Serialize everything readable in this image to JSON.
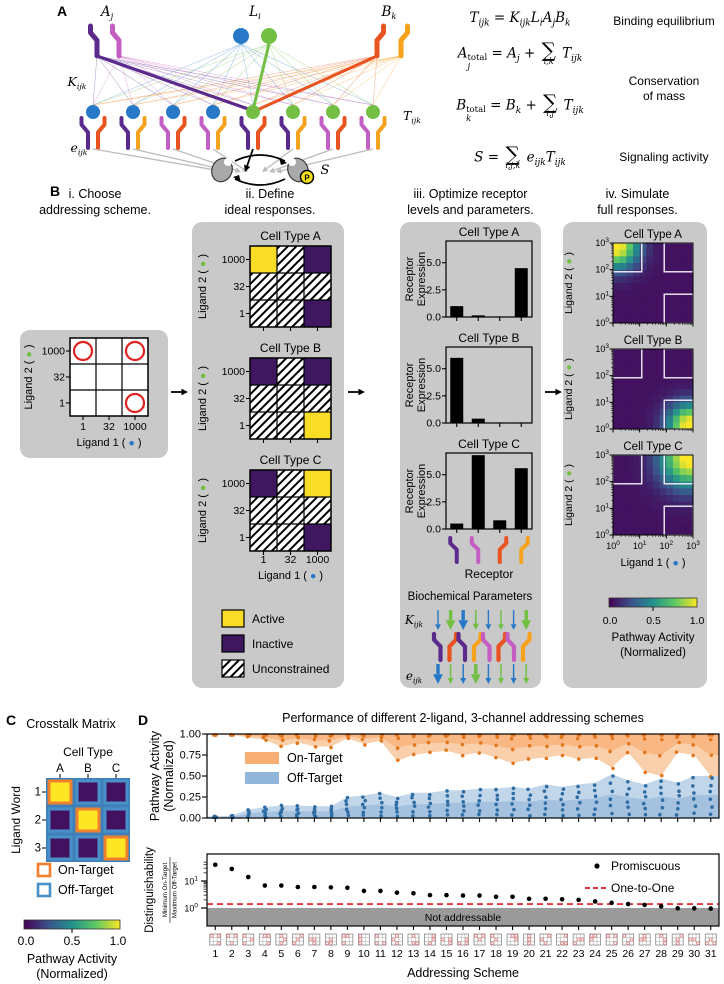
{
  "panelA": {
    "label": "A",
    "node_labels": {
      "a": "A_{j}",
      "l": "L_{i}",
      "b": "B_{k}"
    },
    "edge_labels": {
      "k": "K_{ijk}",
      "t": "T_{ijk}",
      "e": "e_{ijk}",
      "s": "S",
      "p": "P"
    },
    "equations": [
      {
        "math": "T_{ijk} = K_{ijk}L_{i}A_{j}B_{k}"
      },
      {
        "math": "A_{j}^{total} = A_{j} + SUM_{i,k} T_{ijk}"
      },
      {
        "math": "B_{k}^{total} = B_{k} + SUM_{i,j} T_{ijk}"
      },
      {
        "math": "S = SUM_{i,j,k} e_{ijk}T_{ijk}"
      }
    ],
    "notes": [
      "Binding equilibrium",
      "Conservation\nof mass",
      "Signaling activity"
    ]
  },
  "panelB": {
    "label": "B",
    "steps": [
      {
        "title": "i. Choose\naddressing scheme."
      },
      {
        "title": "ii. Define\nideal responses."
      },
      {
        "title": "iii. Optimize receptor\nlevels and parameters."
      },
      {
        "title": "iv. Simulate\nfull responses."
      }
    ],
    "axes": {
      "ligand1": "Ligand 1 (",
      "ligand2": "Ligand 2 (",
      "lin_ticks": [
        "1",
        "32",
        "1000"
      ],
      "lin_yticks": [
        "1000",
        "32",
        "1"
      ],
      "log_exps": [
        "0",
        "1",
        "2",
        "3"
      ]
    },
    "cell_types": [
      "Cell Type A",
      "Cell Type B",
      "Cell Type C"
    ],
    "legend_ideal": [
      "Active",
      "Inactive",
      "Unconstrained"
    ],
    "ylabel_bars": [
      "Receptor",
      "Expression"
    ],
    "bar_yticks": [
      "0.0",
      "2.5",
      "5.0"
    ],
    "receptor_label": "Receptor",
    "biochem_title": "Biochemical Parameters",
    "k_label": "K",
    "k_sub": "ijk",
    "e_label": "e",
    "e_sub": "ijk",
    "colorbar": {
      "ticks": [
        "0.0",
        "0.5",
        "1.0"
      ],
      "label1": "Pathway Activity",
      "label2": "(Normalized)"
    }
  },
  "panelC": {
    "label": "C",
    "title": "Crosstalk Matrix",
    "col_title": "Cell Type",
    "cols": [
      "A",
      "B",
      "C"
    ],
    "row_label": "Ligand Word",
    "rows": [
      "1",
      "2",
      "3"
    ],
    "legend": [
      "On-Target",
      "Off-Target"
    ],
    "colorbar": {
      "ticks": [
        "0.0",
        "0.5",
        "1.0"
      ],
      "label1": "Pathway Activity",
      "label2": "(Normalized)"
    }
  },
  "panelD": {
    "label": "D",
    "title": "Performance of different 2-ligand, 3-channel addressing schemes",
    "top": {
      "ylabel1": "Pathway Activity",
      "ylabel2": "(Normalized)",
      "yticks": [
        "1.00",
        "0.75",
        "0.50",
        "0.25",
        "0.00"
      ],
      "legend": [
        "On-Target",
        "Off-Target"
      ]
    },
    "bottom": {
      "ylabel": "Distinguishability",
      "frac_top": "Minimum On-Target",
      "frac_bot": "Maximum Off-Target",
      "ytick_exps": [
        "0",
        "1"
      ],
      "legend": [
        "Promiscuous",
        "One-to-One"
      ],
      "band_label": "Not addressable",
      "xlabel": "Addressing Scheme"
    }
  },
  "chart_data": [
    {
      "id": "addressing_scheme_example",
      "type": "scatter",
      "xlabel": "Ligand 1",
      "ylabel": "Ligand 2",
      "x_ticks": [
        1,
        32,
        1000
      ],
      "y_ticks": [
        1000,
        32,
        1
      ],
      "ligand_words": [
        {
          "ligand1": 1,
          "ligand2": 1000
        },
        {
          "ligand1": 1000,
          "ligand2": 1000
        },
        {
          "ligand1": 1000,
          "ligand2": 1
        }
      ]
    },
    {
      "id": "ideal_responses",
      "type": "heatmap",
      "x_ticks": [
        1,
        32,
        1000
      ],
      "y_ticks": [
        1000,
        32,
        1
      ],
      "legend": [
        "Active",
        "Inactive",
        "Unconstrained"
      ],
      "grids": {
        "Cell Type A": [
          [
            "active",
            "unconstrained",
            "inactive"
          ],
          [
            "unconstrained",
            "unconstrained",
            "unconstrained"
          ],
          [
            "unconstrained",
            "unconstrained",
            "inactive"
          ]
        ],
        "Cell Type B": [
          [
            "inactive",
            "unconstrained",
            "inactive"
          ],
          [
            "unconstrained",
            "unconstrained",
            "unconstrained"
          ],
          [
            "unconstrained",
            "unconstrained",
            "active"
          ]
        ],
        "Cell Type C": [
          [
            "inactive",
            "unconstrained",
            "active"
          ],
          [
            "unconstrained",
            "unconstrained",
            "unconstrained"
          ],
          [
            "unconstrained",
            "unconstrained",
            "inactive"
          ]
        ]
      }
    },
    {
      "id": "receptor_expression",
      "type": "bar",
      "categories": [
        "receptor-purple",
        "receptor-magenta",
        "receptor-orange",
        "receptor-amber"
      ],
      "yticks": [
        0.0,
        2.5,
        5.0
      ],
      "ylim": [
        0,
        7
      ],
      "series": [
        {
          "name": "Cell Type A",
          "values": [
            1.0,
            0.15,
            0.05,
            4.5
          ]
        },
        {
          "name": "Cell Type B",
          "values": [
            6.0,
            0.4,
            0.05,
            0.05
          ]
        },
        {
          "name": "Cell Type C",
          "values": [
            0.5,
            6.8,
            0.8,
            5.6
          ]
        }
      ]
    },
    {
      "id": "simulated_responses",
      "type": "heatmap",
      "x_tick_exps": [
        "0",
        "1",
        "2",
        "3"
      ],
      "y_tick_exps": [
        "3",
        "2",
        "1",
        "0"
      ],
      "colorbar_ticks": [
        0.0,
        0.5,
        1.0
      ],
      "cell_types": [
        {
          "name": "Cell Type A",
          "peak": "tl"
        },
        {
          "name": "Cell Type B",
          "peak": "br"
        },
        {
          "name": "Cell Type C",
          "peak": "tr"
        }
      ]
    },
    {
      "id": "crosstalk_matrix",
      "type": "heatmap",
      "rows": [
        "1",
        "2",
        "3"
      ],
      "cols": [
        "A",
        "B",
        "C"
      ],
      "values": [
        [
          1,
          0.05,
          0.05
        ],
        [
          0.05,
          1,
          0.05
        ],
        [
          0.05,
          0.05,
          1
        ]
      ]
    },
    {
      "id": "performance",
      "type": "area-scatter",
      "schemes": [
        1,
        2,
        3,
        4,
        5,
        6,
        7,
        8,
        9,
        10,
        11,
        12,
        13,
        14,
        15,
        16,
        17,
        18,
        19,
        20,
        21,
        22,
        23,
        24,
        25,
        26,
        27,
        28,
        29,
        30,
        31
      ],
      "on_target_min": [
        0.99,
        0.99,
        0.96,
        0.93,
        0.85,
        0.9,
        0.85,
        0.85,
        0.95,
        0.88,
        0.92,
        0.68,
        0.75,
        0.78,
        0.8,
        0.75,
        0.78,
        0.72,
        0.65,
        0.7,
        0.72,
        0.75,
        0.7,
        0.72,
        0.6,
        0.78,
        0.55,
        0.5,
        0.78,
        0.75,
        0.5
      ],
      "off_target_max": [
        0.02,
        0.03,
        0.1,
        0.13,
        0.15,
        0.15,
        0.14,
        0.14,
        0.25,
        0.27,
        0.3,
        0.25,
        0.3,
        0.3,
        0.33,
        0.33,
        0.35,
        0.35,
        0.37,
        0.35,
        0.4,
        0.37,
        0.4,
        0.42,
        0.52,
        0.45,
        0.4,
        0.47,
        0.42,
        0.5,
        0.5
      ],
      "ylim": [
        0,
        1
      ]
    },
    {
      "id": "distinguishability",
      "type": "scatter",
      "schemes": [
        1,
        2,
        3,
        4,
        5,
        6,
        7,
        8,
        9,
        10,
        11,
        12,
        13,
        14,
        15,
        16,
        17,
        18,
        19,
        20,
        21,
        22,
        23,
        24,
        25,
        26,
        27,
        28,
        29,
        30,
        31
      ],
      "values": [
        40,
        28,
        14,
        6.8,
        6.8,
        6.0,
        6.0,
        5.8,
        5.6,
        4.3,
        4.3,
        3.7,
        3.5,
        3.0,
        3.0,
        2.9,
        2.9,
        2.6,
        2.6,
        2.2,
        2.2,
        2.1,
        2.0,
        1.75,
        1.55,
        1.4,
        1.3,
        1.15,
        0.97,
        0.97,
        0.95
      ],
      "one_to_one": 1.4,
      "not_addressable_max": 1.0,
      "yscale": "log"
    }
  ],
  "colors": {
    "receptor_purple": "#5b2a8c",
    "receptor_magenta": "#c45ec2",
    "receptor_orange": "#e8531f",
    "receptor_amber": "#f6a21d",
    "ligand_blue": "#2878c8",
    "ligand_green": "#72bf44",
    "active_yellow": "#f8dc25",
    "inactive_purple": "#3e1760",
    "on_target_orange": "#f5a05a",
    "on_target_dot": "#e2761b",
    "off_target_blue": "#85aed6",
    "off_target_dot": "#2e6da4",
    "one_to_one_red": "#e0161f",
    "panel_gray": "#c9c9c9",
    "not_addressable_gray": "#9a9a9a",
    "crosstalk_on_border": "#f08030",
    "crosstalk_off_border": "#4a90c8",
    "crosstalk_bg_blue": "#3e7fba",
    "scheme_circle_red": "#dd2222",
    "phospho_yellow": "#f7e11e",
    "viridis": [
      "#440154",
      "#3b528b",
      "#21918c",
      "#5ec962",
      "#fde725"
    ]
  }
}
